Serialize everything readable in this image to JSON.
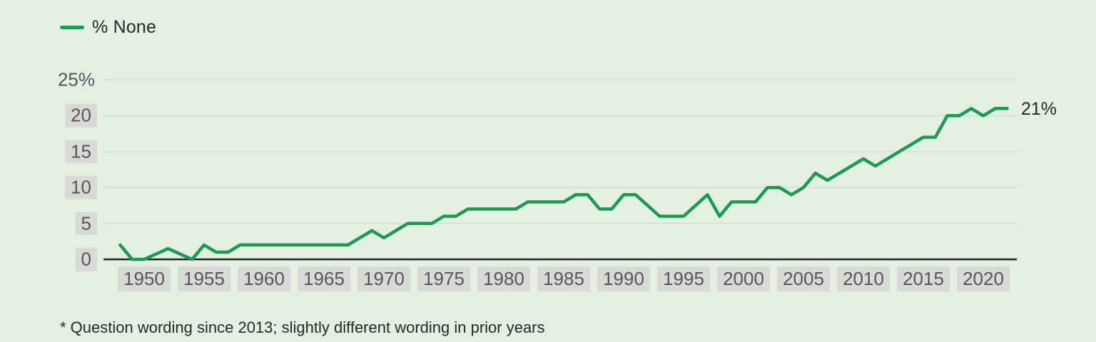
{
  "page": {
    "background_color": "#e3efe0"
  },
  "legend": {
    "label": "% None",
    "color": "#1b9a52"
  },
  "annotation": {
    "end_label": "21%"
  },
  "footnote": "* Question wording since 2013; slightly different wording in prior years",
  "colors": {
    "background": "#e3efe0",
    "line": "#1b9a52",
    "gridline": "#d2dccf",
    "axis": "#24262a",
    "tick_box_bg": "#d9dad5",
    "tick_text": "#55575c",
    "text_dark": "#26282c"
  },
  "chart_data": {
    "type": "line",
    "title": "",
    "xlabel": "",
    "ylabel": "",
    "xlim": [
      1947.5,
      2023
    ],
    "ylim": [
      0,
      25
    ],
    "grid": "horizontal-only",
    "legend_position": "top-left",
    "end_label": "21%",
    "x_ticks": [
      1950,
      1955,
      1960,
      1965,
      1970,
      1975,
      1980,
      1985,
      1990,
      1995,
      2000,
      2005,
      2010,
      2015,
      2020
    ],
    "y_ticks": [
      {
        "value": 25,
        "label": "25%",
        "boxed": false
      },
      {
        "value": 20,
        "label": "20",
        "boxed": true
      },
      {
        "value": 15,
        "label": "15",
        "boxed": true
      },
      {
        "value": 10,
        "label": "10",
        "boxed": true
      },
      {
        "value": 5,
        "label": "5",
        "boxed": true
      },
      {
        "value": 0,
        "label": "0",
        "boxed": true
      }
    ],
    "series": [
      {
        "name": "% None",
        "color": "#1b9a52",
        "points": [
          [
            1948,
            2
          ],
          [
            1949,
            0
          ],
          [
            1950,
            0
          ],
          [
            1952,
            1.5
          ],
          [
            1954,
            0
          ],
          [
            1955,
            2
          ],
          [
            1956,
            1
          ],
          [
            1957,
            1
          ],
          [
            1958,
            2
          ],
          [
            1967,
            2
          ],
          [
            1969,
            4
          ],
          [
            1970,
            3
          ],
          [
            1972,
            5
          ],
          [
            1974,
            5
          ],
          [
            1975,
            6
          ],
          [
            1976,
            6
          ],
          [
            1977,
            7
          ],
          [
            1981,
            7
          ],
          [
            1982,
            8
          ],
          [
            1985,
            8
          ],
          [
            1986,
            9
          ],
          [
            1987,
            9
          ],
          [
            1988,
            7
          ],
          [
            1989,
            7
          ],
          [
            1990,
            9
          ],
          [
            1991,
            9
          ],
          [
            1993,
            6
          ],
          [
            1995,
            6
          ],
          [
            1997,
            9
          ],
          [
            1998,
            6
          ],
          [
            1999,
            8
          ],
          [
            2001,
            8
          ],
          [
            2002,
            10
          ],
          [
            2003,
            10
          ],
          [
            2004,
            9
          ],
          [
            2005,
            10
          ],
          [
            2006,
            12
          ],
          [
            2007,
            11
          ],
          [
            2010,
            14
          ],
          [
            2011,
            13
          ],
          [
            2015,
            17
          ],
          [
            2016,
            17
          ],
          [
            2017,
            20
          ],
          [
            2018,
            20
          ],
          [
            2019,
            21
          ],
          [
            2020,
            20
          ],
          [
            2021,
            21
          ],
          [
            2022,
            21
          ]
        ]
      }
    ]
  }
}
